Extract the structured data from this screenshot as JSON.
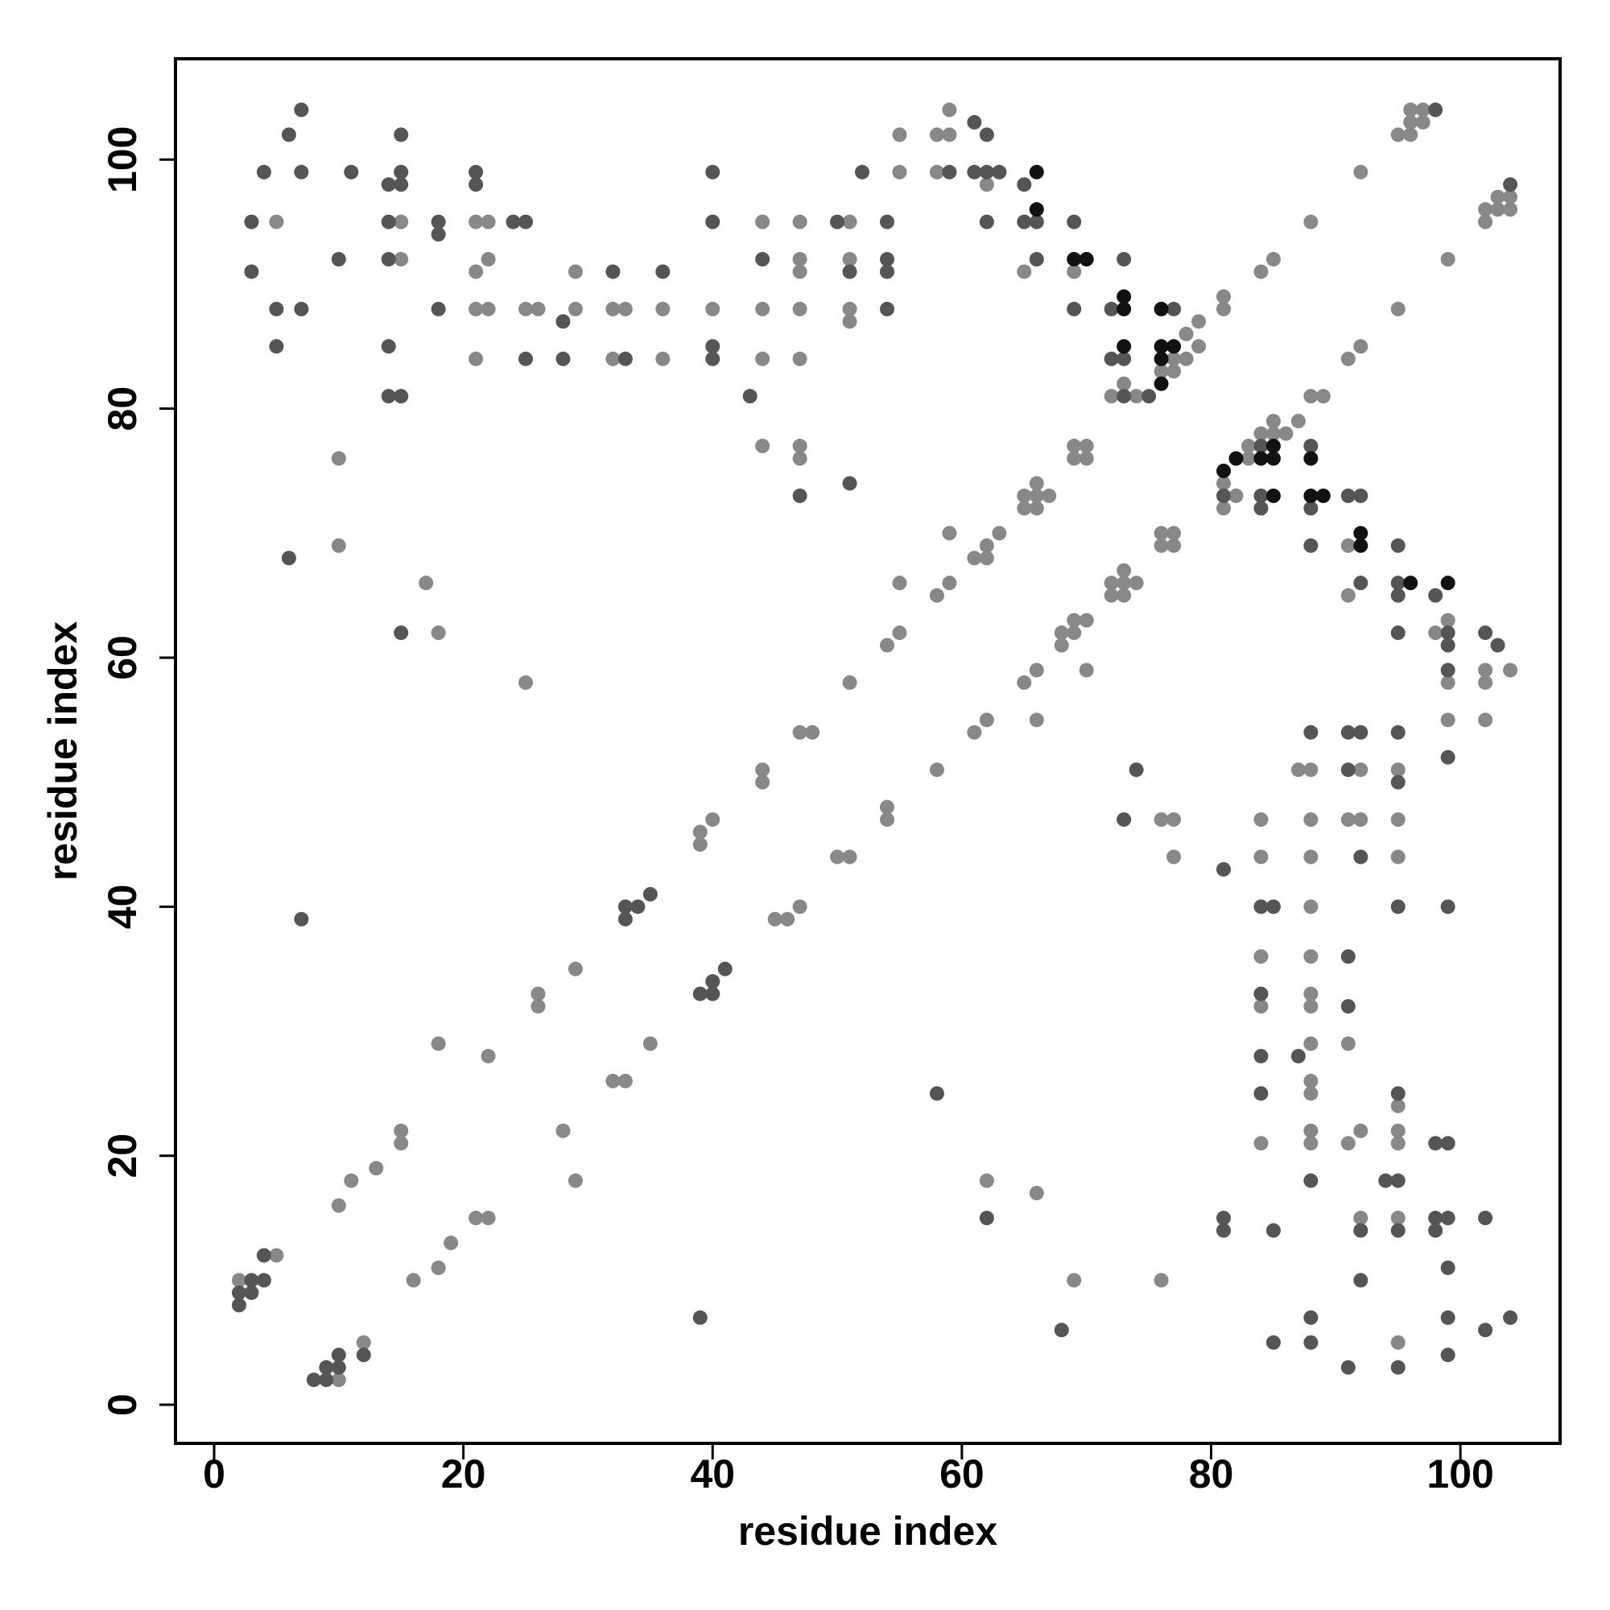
{
  "chart_data": {
    "type": "scatter",
    "x_label": "residue index",
    "y_label": "residue index",
    "xlim": [
      -3.1,
      108
    ],
    "ylim": [
      -3.1,
      108.1
    ],
    "xticks": [
      0,
      20,
      40,
      60,
      80,
      100
    ],
    "yticks": [
      0,
      20,
      40,
      60,
      80,
      100
    ],
    "series": [
      {
        "color": "#888888",
        "x": [
          2,
          5,
          5,
          10,
          10,
          10,
          10,
          11,
          12,
          13,
          15,
          15,
          15,
          15,
          16,
          17,
          18,
          18,
          18,
          19,
          21,
          21,
          21,
          21,
          21,
          22,
          22,
          22,
          22,
          22,
          25,
          25,
          26,
          26,
          26,
          28,
          29,
          29,
          29,
          29,
          32,
          32,
          32,
          33,
          33,
          35,
          36,
          36,
          39,
          39,
          40,
          40,
          44,
          44,
          44,
          44,
          44,
          44,
          45,
          46,
          47,
          47,
          47,
          47,
          47,
          47,
          47,
          47,
          47,
          48,
          50,
          51,
          51,
          51,
          51,
          51,
          51,
          54,
          54,
          54,
          55,
          55,
          55,
          55,
          58,
          58,
          58,
          58,
          59,
          59,
          59,
          59,
          61,
          61,
          62,
          62,
          62,
          62,
          62,
          63,
          65,
          65,
          65,
          65,
          66,
          66,
          66,
          66,
          66,
          66,
          67,
          68,
          68,
          69,
          69,
          69,
          69,
          69,
          69,
          70,
          70,
          70,
          70,
          72,
          72,
          72,
          73,
          73,
          73,
          73,
          74,
          74,
          76,
          76,
          76,
          76,
          76,
          77,
          77,
          77,
          77,
          77,
          77,
          78,
          78,
          79,
          79,
          81,
          81,
          81,
          81,
          82,
          83,
          83,
          84,
          84,
          84,
          84,
          84,
          84,
          84,
          85,
          85,
          85,
          86,
          87,
          87,
          88,
          88,
          88,
          88,
          88,
          88,
          88,
          88,
          88,
          88,
          88,
          88,
          88,
          88,
          89,
          91,
          91,
          91,
          91,
          91,
          91,
          92,
          92,
          92,
          92,
          92,
          92,
          95,
          95,
          95,
          95,
          95,
          95,
          95,
          95,
          95,
          95,
          96,
          96,
          96,
          97,
          97,
          98,
          99,
          99,
          99,
          99,
          102,
          102,
          102,
          102,
          102,
          103,
          103,
          104,
          104,
          104
        ],
        "values": [
          10,
          95,
          12,
          76,
          69,
          16,
          2,
          18,
          5,
          19,
          95,
          92,
          22,
          21,
          10,
          66,
          62,
          29,
          11,
          13,
          95,
          91,
          88,
          84,
          15,
          95,
          92,
          88,
          28,
          15,
          88,
          58,
          88,
          33,
          32,
          22,
          91,
          88,
          35,
          18,
          88,
          84,
          26,
          88,
          26,
          29,
          88,
          84,
          46,
          45,
          88,
          47,
          95,
          88,
          84,
          77,
          51,
          50,
          39,
          39,
          95,
          92,
          91,
          88,
          84,
          77,
          76,
          54,
          40,
          54,
          44,
          95,
          92,
          88,
          87,
          58,
          44,
          61,
          48,
          47,
          102,
          99,
          66,
          62,
          102,
          99,
          65,
          51,
          104,
          102,
          70,
          66,
          68,
          54,
          98,
          69,
          68,
          55,
          18,
          70,
          91,
          73,
          72,
          58,
          74,
          73,
          72,
          59,
          55,
          17,
          73,
          62,
          61,
          91,
          77,
          76,
          63,
          62,
          10,
          77,
          76,
          63,
          59,
          81,
          66,
          65,
          82,
          67,
          66,
          65,
          81,
          66,
          83,
          70,
          69,
          47,
          10,
          84,
          83,
          70,
          69,
          47,
          44,
          86,
          84,
          87,
          85,
          89,
          88,
          74,
          72,
          73,
          77,
          76,
          91,
          78,
          47,
          44,
          36,
          32,
          21,
          92,
          79,
          78,
          78,
          79,
          51,
          95,
          81,
          51,
          47,
          44,
          40,
          36,
          33,
          32,
          29,
          26,
          25,
          22,
          21,
          81,
          84,
          69,
          65,
          47,
          29,
          21,
          99,
          85,
          51,
          47,
          22,
          15,
          102,
          88,
          51,
          47,
          44,
          24,
          22,
          21,
          15,
          5,
          104,
          103,
          102,
          104,
          103,
          62,
          92,
          63,
          58,
          55,
          96,
          95,
          59,
          58,
          55,
          97,
          96,
          97,
          96,
          59
        ]
      },
      {
        "color": "#555555",
        "x": [
          2,
          2,
          3,
          3,
          3,
          3,
          4,
          4,
          4,
          5,
          5,
          6,
          6,
          7,
          7,
          7,
          7,
          8,
          9,
          9,
          10,
          10,
          10,
          11,
          12,
          14,
          14,
          14,
          14,
          14,
          15,
          15,
          15,
          15,
          15,
          18,
          18,
          18,
          21,
          21,
          24,
          25,
          25,
          28,
          28,
          32,
          33,
          33,
          33,
          34,
          35,
          36,
          39,
          39,
          40,
          40,
          40,
          40,
          40,
          40,
          41,
          43,
          44,
          47,
          50,
          51,
          51,
          52,
          54,
          54,
          54,
          54,
          58,
          59,
          61,
          61,
          62,
          62,
          62,
          62,
          63,
          65,
          65,
          66,
          66,
          68,
          69,
          69,
          72,
          72,
          73,
          73,
          73,
          73,
          74,
          75,
          77,
          81,
          81,
          81,
          81,
          84,
          84,
          84,
          84,
          84,
          84,
          84,
          85,
          85,
          85,
          87,
          88,
          88,
          88,
          88,
          88,
          88,
          88,
          91,
          91,
          91,
          91,
          91,
          91,
          92,
          92,
          92,
          92,
          92,
          92,
          94,
          95,
          95,
          95,
          95,
          95,
          95,
          95,
          95,
          95,
          95,
          95,
          98,
          98,
          98,
          98,
          98,
          99,
          99,
          99,
          99,
          99,
          99,
          99,
          99,
          99,
          99,
          102,
          102,
          102,
          103,
          104,
          104
        ],
        "values": [
          9,
          8,
          95,
          91,
          10,
          9,
          99,
          12,
          10,
          88,
          85,
          102,
          68,
          104,
          99,
          88,
          39,
          2,
          3,
          2,
          92,
          4,
          3,
          99,
          4,
          98,
          95,
          92,
          85,
          81,
          102,
          99,
          98,
          81,
          62,
          95,
          94,
          88,
          99,
          98,
          95,
          95,
          84,
          87,
          84,
          91,
          84,
          40,
          39,
          40,
          41,
          91,
          33,
          7,
          99,
          95,
          85,
          84,
          34,
          33,
          35,
          81,
          92,
          73,
          95,
          91,
          74,
          99,
          95,
          92,
          91,
          88,
          25,
          99,
          103,
          99,
          102,
          99,
          95,
          15,
          99,
          98,
          95,
          95,
          92,
          6,
          95,
          88,
          88,
          84,
          92,
          84,
          81,
          47,
          51,
          81,
          88,
          73,
          43,
          15,
          14,
          77,
          73,
          72,
          40,
          33,
          28,
          25,
          40,
          14,
          5,
          28,
          77,
          72,
          69,
          54,
          18,
          7,
          5,
          73,
          54,
          51,
          36,
          32,
          3,
          73,
          66,
          54,
          44,
          14,
          10,
          18,
          69,
          66,
          65,
          62,
          54,
          50,
          40,
          25,
          18,
          14,
          3,
          104,
          65,
          21,
          15,
          14,
          62,
          61,
          59,
          52,
          40,
          21,
          15,
          11,
          7,
          4,
          62,
          15,
          6,
          61,
          98,
          7
        ]
      },
      {
        "color": "#111111",
        "x": [
          66,
          66,
          69,
          70,
          73,
          73,
          73,
          76,
          76,
          76,
          76,
          77,
          81,
          82,
          84,
          85,
          85,
          85,
          88,
          88,
          89,
          92,
          92,
          96,
          99
        ],
        "values": [
          99,
          96,
          92,
          92,
          89,
          88,
          85,
          88,
          85,
          84,
          82,
          85,
          75,
          76,
          76,
          77,
          76,
          73,
          76,
          73,
          73,
          70,
          69,
          66,
          66
        ]
      }
    ]
  }
}
